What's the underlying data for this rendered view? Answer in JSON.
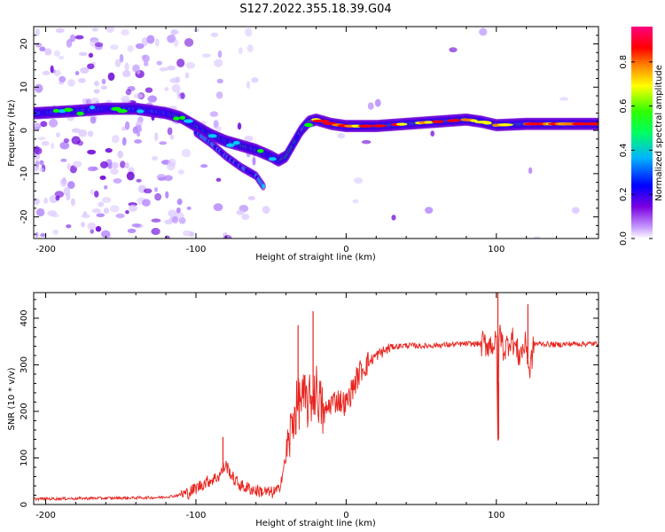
{
  "title": "S127.2022.355.18.39.G04",
  "chart_data": [
    {
      "type": "heatmap",
      "xlabel": "Height of straight line (km)",
      "ylabel": "Frequency (Hz)",
      "xlim": [
        -208,
        168
      ],
      "ylim": [
        -25,
        24
      ],
      "x_ticks": [
        -200,
        -100,
        0,
        100
      ],
      "y_ticks": [
        -20,
        -10,
        0,
        10,
        20
      ],
      "colorbar": {
        "label": "Normalized spectral amplitude",
        "range": [
          0,
          0.96
        ],
        "ticks": [
          0.0,
          0.2,
          0.4,
          0.6,
          0.8
        ],
        "colormap": [
          "#ffffff",
          "#b080ff",
          "#6a00d8",
          "#0000ff",
          "#00c8ff",
          "#00ff00",
          "#ffff00",
          "#ff8000",
          "#ff0000",
          "#ff0080"
        ]
      },
      "ridge": {
        "x": [
          -205,
          -180,
          -160,
          -140,
          -120,
          -110,
          -100,
          -90,
          -80,
          -70,
          -60,
          -50,
          -45,
          -40,
          -35,
          -30,
          -25,
          -20,
          -10,
          0,
          20,
          40,
          60,
          80,
          90,
          100,
          120,
          140,
          168
        ],
        "y": [
          4,
          4.5,
          5,
          5,
          4,
          3,
          1,
          -1,
          -2.5,
          -3.5,
          -4.5,
          -6,
          -7,
          -6,
          -3,
          0,
          2,
          2.5,
          1.5,
          1,
          1,
          1.5,
          2,
          2.5,
          2,
          1.2,
          1.5,
          1.5,
          1.5
        ]
      },
      "branch": {
        "x": [
          -100,
          -90,
          -80,
          -70,
          -60,
          -55
        ],
        "y": [
          -0.5,
          -3,
          -6,
          -8.5,
          -10.5,
          -13
        ]
      },
      "grid": false
    },
    {
      "type": "line",
      "xlabel": "Height of straight line (km)",
      "ylabel": "SNR (10 * v/v)",
      "xlim": [
        -208,
        168
      ],
      "ylim": [
        0,
        455
      ],
      "x_ticks": [
        -200,
        -100,
        0,
        100
      ],
      "y_ticks": [
        0,
        100,
        200,
        300,
        400
      ],
      "color": "#e8251f",
      "series": [
        {
          "x": [
            -208,
            -180,
            -150,
            -125,
            -115,
            -105,
            -95,
            -85,
            -80,
            -75,
            -70,
            -60,
            -50,
            -45,
            -40,
            -35,
            -30,
            -25,
            -20,
            -15,
            -10,
            -5,
            0,
            5,
            10,
            20,
            30,
            40,
            50,
            60,
            70,
            80,
            90,
            95,
            100,
            101,
            102,
            105,
            110,
            115,
            120,
            122,
            125,
            130,
            140,
            150,
            168
          ],
          "y": [
            12,
            13,
            14,
            15,
            18,
            25,
            45,
            60,
            85,
            55,
            40,
            30,
            25,
            30,
            100,
            190,
            230,
            215,
            250,
            190,
            220,
            225,
            215,
            255,
            290,
            320,
            338,
            342,
            340,
            342,
            343,
            345,
            345,
            345,
            345,
            150,
            380,
            330,
            360,
            320,
            345,
            280,
            345,
            345,
            343,
            345,
            345
          ]
        }
      ],
      "spikes": [
        {
          "x": -82,
          "y": 145
        },
        {
          "x": -32,
          "y": 385
        },
        {
          "x": -22,
          "y": 415
        },
        {
          "x": 101,
          "y": 455
        },
        {
          "x": 101.5,
          "y": 140
        },
        {
          "x": 121,
          "y": 430
        }
      ],
      "grid": false
    }
  ]
}
